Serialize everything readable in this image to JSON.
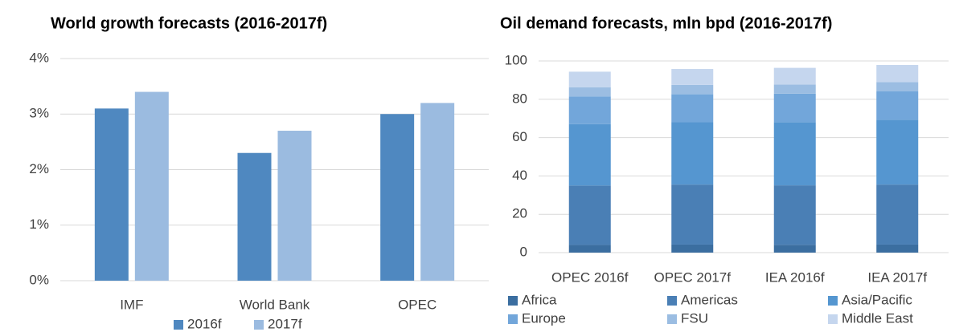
{
  "chart_data": [
    {
      "type": "bar",
      "title": "World growth forecasts (2016-2017f)",
      "categories": [
        "IMF",
        "World Bank",
        "OPEC"
      ],
      "series": [
        {
          "name": "2016f",
          "color": "#4f88c0",
          "values": [
            3.1,
            2.3,
            3.0
          ]
        },
        {
          "name": "2017f",
          "color": "#9bbbe0",
          "values": [
            3.4,
            2.7,
            3.2
          ]
        }
      ],
      "ylim": [
        0,
        4
      ],
      "yticks": [
        {
          "value": 0,
          "label": "0%"
        },
        {
          "value": 1,
          "label": "1%"
        },
        {
          "value": 2,
          "label": "2%"
        },
        {
          "value": 3,
          "label": "3%"
        },
        {
          "value": 4,
          "label": "4%"
        }
      ],
      "grid": true,
      "legend": "bottom"
    },
    {
      "type": "stacked_bar",
      "title": "Oil demand forecasts, mln bpd (2016-2017f)",
      "categories": [
        "OPEC 2016f",
        "OPEC 2017f",
        "IEA 2016f",
        "IEA 2017f"
      ],
      "series": [
        {
          "name": "Africa",
          "color": "#3b6ea0",
          "values": [
            4.0,
            4.2,
            4.1,
            4.2
          ]
        },
        {
          "name": "Americas",
          "color": "#4a7fb5",
          "values": [
            31.0,
            31.3,
            31.0,
            31.3
          ]
        },
        {
          "name": "Asia/Pacific",
          "color": "#5596d0",
          "values": [
            32.0,
            32.5,
            33.0,
            33.8
          ]
        },
        {
          "name": "Europe",
          "color": "#72a6da",
          "values": [
            14.5,
            14.6,
            14.8,
            14.8
          ]
        },
        {
          "name": "FSU",
          "color": "#9bbde2",
          "values": [
            4.8,
            4.9,
            4.8,
            4.9
          ]
        },
        {
          "name": "Middle East",
          "color": "#c5d6ee",
          "values": [
            8.1,
            8.3,
            8.7,
            8.9
          ]
        }
      ],
      "ylim": [
        0,
        100
      ],
      "yticks": [
        0,
        20,
        40,
        60,
        80,
        100
      ],
      "grid": true,
      "legend": "bottom"
    }
  ]
}
